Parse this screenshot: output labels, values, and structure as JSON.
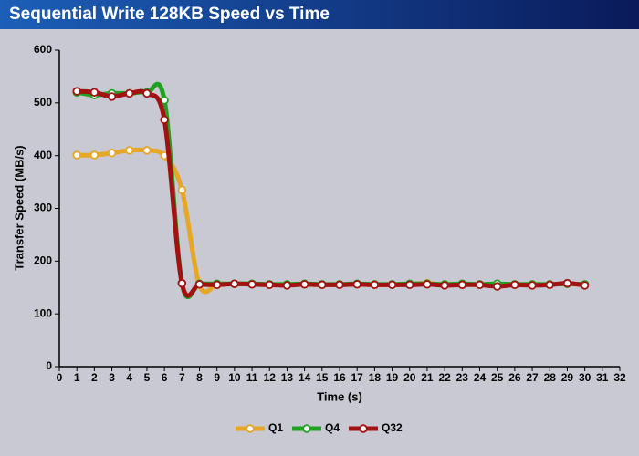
{
  "chart_data": {
    "type": "line",
    "title": "Sequential Write 128KB Speed vs Time",
    "x_label": "Time (s)",
    "y_label": "Transfer Speed (MB/s)",
    "x": [
      1,
      2,
      3,
      4,
      5,
      6,
      7,
      8,
      9,
      10,
      11,
      12,
      13,
      14,
      15,
      16,
      17,
      18,
      19,
      20,
      21,
      22,
      23,
      24,
      25,
      26,
      27,
      28,
      29,
      30
    ],
    "xlim": [
      0,
      32
    ],
    "xticks": [
      0,
      1,
      2,
      3,
      4,
      5,
      6,
      7,
      8,
      9,
      10,
      11,
      12,
      13,
      14,
      15,
      16,
      17,
      18,
      19,
      20,
      21,
      22,
      23,
      24,
      25,
      26,
      27,
      28,
      29,
      30,
      31,
      32
    ],
    "ylim": [
      0,
      600
    ],
    "yticks": [
      0,
      100,
      200,
      300,
      400,
      500,
      600
    ],
    "series": [
      {
        "name": "Q1",
        "color": "#e6a626",
        "values": [
          401,
          401,
          405,
          410,
          410,
          400,
          335,
          155,
          155,
          157,
          156,
          155,
          155,
          156,
          155,
          156,
          156,
          155,
          155,
          156,
          158,
          155,
          156,
          155,
          155,
          155,
          155,
          156,
          157,
          155
        ]
      },
      {
        "name": "Q4",
        "color": "#21a021",
        "values": [
          520,
          515,
          518,
          518,
          520,
          505,
          158,
          157,
          157,
          157,
          157,
          156,
          156,
          157,
          156,
          156,
          157,
          156,
          156,
          157,
          157,
          156,
          157,
          156,
          157,
          156,
          156,
          156,
          157,
          156
        ]
      },
      {
        "name": "Q32",
        "color": "#a31212",
        "values": [
          522,
          520,
          512,
          518,
          518,
          468,
          158,
          156,
          155,
          157,
          156,
          155,
          154,
          156,
          155,
          155,
          156,
          155,
          155,
          155,
          156,
          154,
          155,
          155,
          152,
          155,
          154,
          155,
          158,
          154
        ]
      }
    ]
  }
}
